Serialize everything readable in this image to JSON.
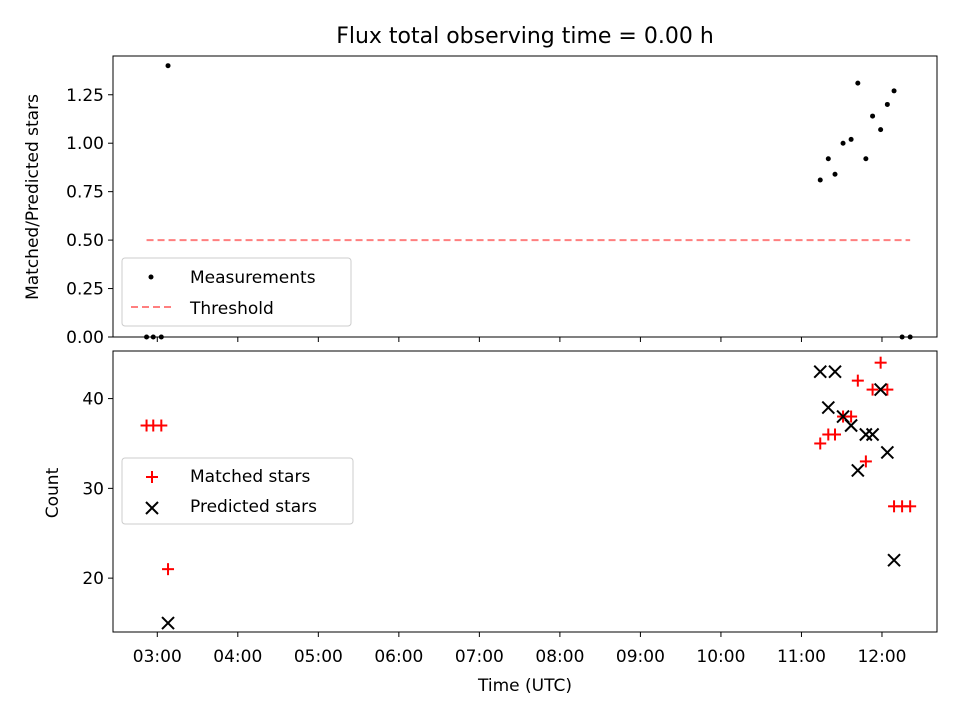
{
  "title": "Flux total observing time = 0.00 h",
  "xlabel": "Time (UTC)",
  "x_ticks": [
    "03:00",
    "04:00",
    "05:00",
    "06:00",
    "07:00",
    "08:00",
    "09:00",
    "10:00",
    "11:00",
    "12:00"
  ],
  "colors": {
    "measurement": "#000000",
    "threshold": "#ff7f7f",
    "matched": "#ff0000",
    "predicted": "#000000"
  },
  "chart_data": [
    {
      "type": "scatter",
      "ylabel": "Matched/Predicted stars",
      "xlim": [
        "02:27",
        "12:41"
      ],
      "ylim": [
        0,
        1.45
      ],
      "y_ticks": [
        "0.00",
        "0.25",
        "0.50",
        "0.75",
        "1.00",
        "1.25"
      ],
      "grid": false,
      "legend_position": "lower-left",
      "series": [
        {
          "name": "Measurements",
          "marker": "dot",
          "points": [
            [
              "02:52",
              0.0
            ],
            [
              "02:57",
              0.0
            ],
            [
              "03:03",
              0.0
            ],
            [
              "03:08",
              1.4
            ],
            [
              "11:14",
              0.81
            ],
            [
              "11:20",
              0.92
            ],
            [
              "11:25",
              0.84
            ],
            [
              "11:31",
              1.0
            ],
            [
              "11:37",
              1.02
            ],
            [
              "11:42",
              1.31
            ],
            [
              "11:48",
              0.92
            ],
            [
              "11:53",
              1.14
            ],
            [
              "11:59",
              1.07
            ],
            [
              "12:04",
              1.2
            ],
            [
              "12:09",
              1.27
            ],
            [
              "12:15",
              0.0
            ],
            [
              "12:21",
              0.0
            ]
          ]
        },
        {
          "name": "Threshold",
          "type": "line",
          "style": "dashed",
          "points": [
            [
              "02:52",
              0.5
            ],
            [
              "12:21",
              0.5
            ]
          ]
        }
      ]
    },
    {
      "type": "scatter",
      "ylabel": "Count",
      "xlim": [
        "02:27",
        "12:41"
      ],
      "ylim": [
        14,
        45.3
      ],
      "y_ticks": [
        "20",
        "30",
        "40"
      ],
      "grid": false,
      "legend_position": "center-left",
      "series": [
        {
          "name": "Matched stars",
          "marker": "plus",
          "points": [
            [
              "02:52",
              37
            ],
            [
              "02:57",
              37
            ],
            [
              "03:03",
              37
            ],
            [
              "03:08",
              21
            ],
            [
              "11:14",
              35
            ],
            [
              "11:20",
              36
            ],
            [
              "11:25",
              36
            ],
            [
              "11:31",
              38
            ],
            [
              "11:37",
              38
            ],
            [
              "11:42",
              42
            ],
            [
              "11:48",
              33
            ],
            [
              "11:53",
              41
            ],
            [
              "11:59",
              44
            ],
            [
              "12:04",
              41
            ],
            [
              "12:09",
              28
            ],
            [
              "12:15",
              28
            ],
            [
              "12:21",
              28
            ]
          ]
        },
        {
          "name": "Predicted stars",
          "marker": "x",
          "points": [
            [
              "03:08",
              15
            ],
            [
              "11:14",
              43
            ],
            [
              "11:20",
              39
            ],
            [
              "11:25",
              43
            ],
            [
              "11:31",
              38
            ],
            [
              "11:37",
              37
            ],
            [
              "11:42",
              32
            ],
            [
              "11:48",
              36
            ],
            [
              "11:53",
              36
            ],
            [
              "11:59",
              41
            ],
            [
              "12:04",
              34
            ],
            [
              "12:09",
              22
            ]
          ]
        }
      ]
    }
  ]
}
